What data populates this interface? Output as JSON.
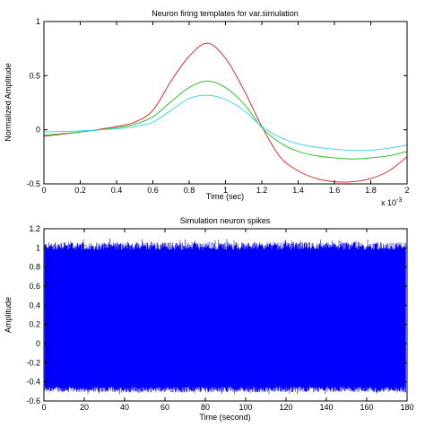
{
  "chart_data": [
    {
      "type": "line",
      "title": "Neuron firing templates for var.simulation",
      "xlabel": "Time (sec)",
      "ylabel": "Normalized Amplitude",
      "x_exponent_label": "x 10",
      "x_exponent": "-3",
      "xlim": [
        0,
        2
      ],
      "ylim": [
        -0.5,
        1
      ],
      "xticks": [
        "0",
        "0.2",
        "0.4",
        "0.6",
        "0.8",
        "1",
        "1.2",
        "1.4",
        "1.6",
        "1.8",
        "2"
      ],
      "yticks": [
        "-0.5",
        "0",
        "0.5",
        "1"
      ],
      "grid": false,
      "series": [
        {
          "color": "#e03030",
          "x": [
            0,
            0.2,
            0.4,
            0.5,
            0.6,
            0.7,
            0.8,
            0.9,
            1.0,
            1.1,
            1.2,
            1.3,
            1.4,
            1.5,
            1.6,
            1.7,
            1.8,
            1.9,
            2.0
          ],
          "y": [
            -0.06,
            -0.02,
            0.03,
            0.07,
            0.18,
            0.45,
            0.68,
            0.8,
            0.66,
            0.37,
            0.03,
            -0.25,
            -0.38,
            -0.45,
            -0.48,
            -0.48,
            -0.45,
            -0.38,
            -0.25
          ]
        },
        {
          "color": "#30c030",
          "x": [
            0,
            0.2,
            0.4,
            0.5,
            0.6,
            0.7,
            0.8,
            0.9,
            1.0,
            1.1,
            1.2,
            1.3,
            1.4,
            1.5,
            1.6,
            1.7,
            1.8,
            1.9,
            2.0
          ],
          "y": [
            -0.05,
            -0.02,
            0.02,
            0.05,
            0.12,
            0.26,
            0.39,
            0.45,
            0.39,
            0.24,
            0.02,
            -0.12,
            -0.2,
            -0.24,
            -0.26,
            -0.27,
            -0.26,
            -0.24,
            -0.2
          ]
        },
        {
          "color": "#40d8e8",
          "x": [
            0,
            0.2,
            0.4,
            0.5,
            0.6,
            0.7,
            0.8,
            0.9,
            1.0,
            1.1,
            1.2,
            1.3,
            1.4,
            1.5,
            1.6,
            1.7,
            1.8,
            1.9,
            2.0
          ],
          "y": [
            -0.02,
            -0.01,
            0.01,
            0.03,
            0.07,
            0.18,
            0.29,
            0.32,
            0.28,
            0.18,
            0.03,
            -0.07,
            -0.13,
            -0.16,
            -0.18,
            -0.19,
            -0.19,
            -0.17,
            -0.14
          ]
        }
      ]
    },
    {
      "type": "line",
      "title": "Simulation neuron spikes",
      "xlabel": "Time (second)",
      "ylabel": "Amplitude",
      "xlim": [
        0,
        180
      ],
      "ylim": [
        -0.6,
        1.2
      ],
      "xticks": [
        "0",
        "20",
        "40",
        "60",
        "80",
        "100",
        "120",
        "140",
        "160",
        "180"
      ],
      "yticks": [
        "-0.6",
        "-0.4",
        "-0.2",
        "0",
        "0.2",
        "0.4",
        "0.6",
        "0.8",
        "1",
        "1.2"
      ],
      "grid": false,
      "series": [
        {
          "color": "#0000ff",
          "band_dense_range": [
            -0.48,
            1.02
          ],
          "peak_max": 1.1,
          "trough_min": -0.53
        }
      ]
    }
  ]
}
